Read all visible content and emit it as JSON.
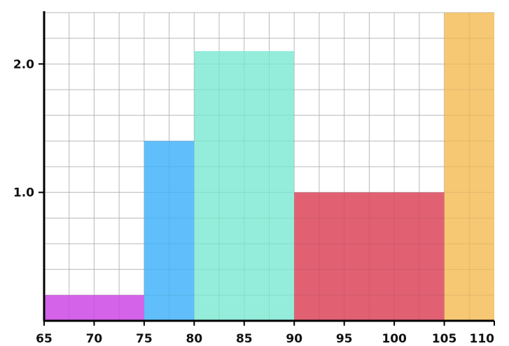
{
  "chart_data": {
    "type": "bar",
    "variant": "histogram",
    "title": "",
    "xlabel": "",
    "ylabel": "",
    "xlim": [
      65,
      110
    ],
    "ylim": [
      0,
      2.4
    ],
    "grid": true,
    "x_major_ticks": [
      65,
      70,
      75,
      80,
      85,
      90,
      95,
      100,
      105,
      110
    ],
    "x_tick_labels": [
      "65",
      "70",
      "75",
      "80",
      "85",
      "90",
      "95",
      "100",
      "105",
      "110"
    ],
    "y_major_ticks": [
      1.0,
      2.0
    ],
    "y_tick_labels": [
      "1.0",
      "2.0"
    ],
    "bins": [
      {
        "start": 65,
        "end": 75,
        "value": 0.2,
        "color": "#d35ee8"
      },
      {
        "start": 75,
        "end": 80,
        "value": 1.4,
        "color": "#5bbdfb"
      },
      {
        "start": 80,
        "end": 90,
        "value": 2.1,
        "color": "#90ecd9"
      },
      {
        "start": 90,
        "end": 105,
        "value": 1.0,
        "color": "#e05c6e"
      },
      {
        "start": 105,
        "end": 110,
        "value": 2.4,
        "color": "#f6c66f"
      }
    ]
  }
}
